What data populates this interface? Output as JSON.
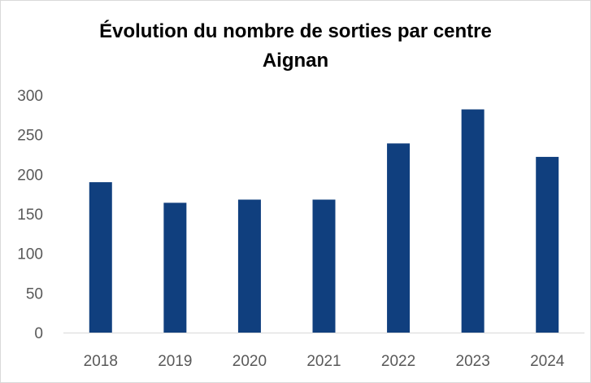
{
  "chart_data": {
    "type": "bar",
    "title": "Évolution du nombre de sorties par centre",
    "subtitle": "Aignan",
    "categories": [
      "2018",
      "2019",
      "2020",
      "2021",
      "2022",
      "2023",
      "2024"
    ],
    "values": [
      190,
      164,
      168,
      168,
      239,
      282,
      222
    ],
    "ylim": [
      0,
      300
    ],
    "yticks": [
      0,
      50,
      100,
      150,
      200,
      250,
      300
    ],
    "grid": false,
    "legend": "none",
    "bar_color": "#103F7E",
    "axis_color": "#D9D9D9",
    "label_color": "#595959"
  }
}
